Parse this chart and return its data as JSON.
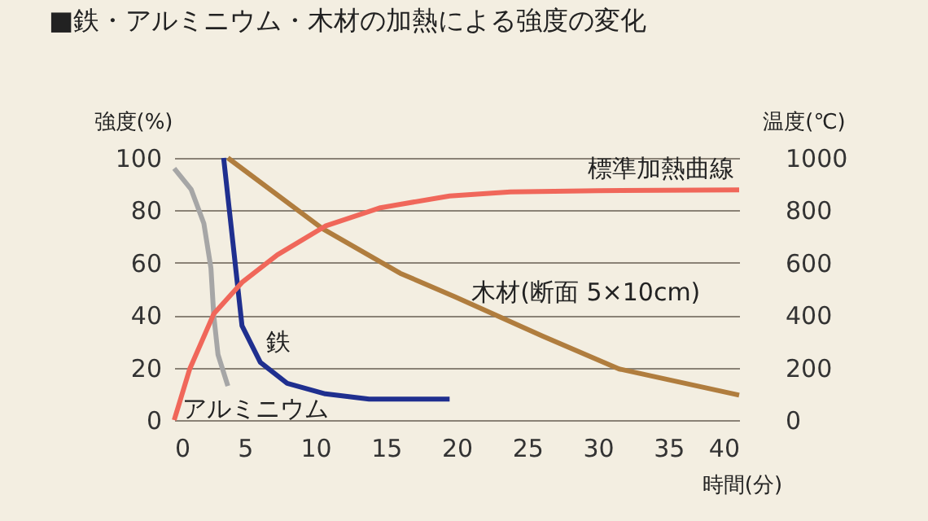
{
  "chart_data": {
    "type": "line",
    "title": "■鉄・アルミニウム・木材の加熱による強度の変化",
    "xlabel": "時間(分)",
    "ylabel": "強度(%)",
    "y2label": "温度(℃)",
    "xlim": [
      0,
      40
    ],
    "xticks": [
      0,
      5,
      10,
      15,
      20,
      25,
      30,
      35,
      40
    ],
    "ylim": [
      0,
      100
    ],
    "yticks": [
      0,
      20,
      40,
      60,
      80,
      100
    ],
    "y2lim": [
      0,
      1000
    ],
    "y2ticks": [
      0,
      200,
      400,
      600,
      800,
      1000
    ],
    "grid": "y",
    "legend": false,
    "marker": "none",
    "line_style": "solid",
    "series": [
      {
        "name": "アルミニウム",
        "color": "#a6a6a6",
        "x": [
          0,
          1.2,
          2.1,
          2.6,
          2.8,
          3.1,
          3.8
        ],
        "values": [
          96,
          88,
          75,
          58,
          40,
          25,
          13
        ]
      },
      {
        "name": "鉄",
        "color": "#1f2f8f",
        "x": [
          3.5,
          4.8,
          6.1,
          8.0,
          10.7,
          13.8,
          19.5
        ],
        "values": [
          100,
          36,
          22,
          14,
          10,
          8,
          8
        ]
      },
      {
        "name": "木材(断面 5×10cm)",
        "color": "#b07d3e",
        "x": [
          3.8,
          10.5,
          16,
          19.9,
          26.1,
          31.5,
          40
        ],
        "values": [
          100,
          73,
          56,
          47,
          32,
          19.5,
          9.5
        ]
      },
      {
        "name": "標準加熱曲線",
        "color": "#f0675a",
        "axis": "y2",
        "x": [
          0,
          1.1,
          2.8,
          4.8,
          7.3,
          10.7,
          14.6,
          19.5,
          23.8,
          30,
          40
        ],
        "values": [
          0,
          195,
          405,
          525,
          630,
          740,
          810,
          855,
          870,
          875,
          878
        ]
      }
    ]
  }
}
